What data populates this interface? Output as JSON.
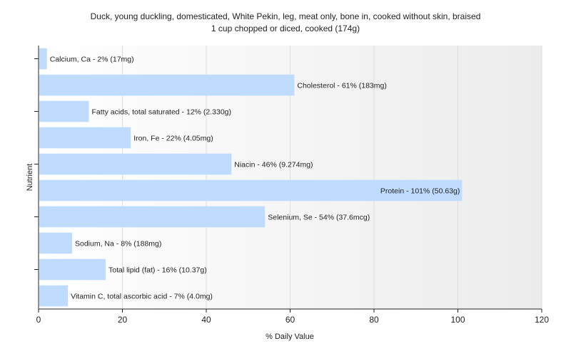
{
  "chart_data": {
    "type": "bar",
    "orientation": "horizontal",
    "title": "Duck, young duckling, domesticated, White Pekin, leg, meat only, bone in, cooked without skin, braised",
    "subtitle": "1 cup chopped or diced, cooked (174g)",
    "xlabel": "% Daily Value",
    "ylabel": "Nutrient",
    "xlim": [
      0,
      120
    ],
    "xticks": [
      0,
      20,
      40,
      60,
      80,
      100,
      120
    ],
    "grid": true,
    "legend": "none",
    "bar_color": "#bfdcff",
    "categories": [
      "Calcium, Ca",
      "Cholesterol",
      "Fatty acids, total saturated",
      "Iron, Fe",
      "Niacin",
      "Protein",
      "Selenium, Se",
      "Sodium, Na",
      "Total lipid (fat)",
      "Vitamin C, total ascorbic acid"
    ],
    "values": [
      2,
      61,
      12,
      22,
      46,
      101,
      54,
      8,
      16,
      7
    ],
    "labels": [
      "Calcium, Ca - 2% (17mg)",
      "Cholesterol - 61% (183mg)",
      "Fatty acids, total saturated - 12% (2.330g)",
      "Iron, Fe - 22% (4.05mg)",
      "Niacin - 46% (9.274mg)",
      "Protein - 101% (50.63g)",
      "Selenium, Se - 54% (37.6mcg)",
      "Sodium, Na - 8% (188mg)",
      "Total lipid (fat) - 16% (10.37g)",
      "Vitamin C, total ascorbic acid - 7% (4.0mg)"
    ]
  }
}
